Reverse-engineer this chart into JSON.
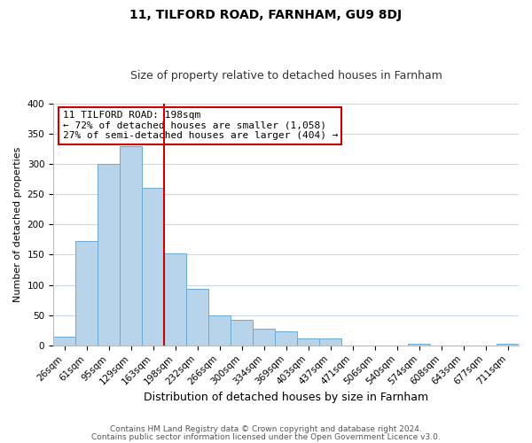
{
  "title": "11, TILFORD ROAD, FARNHAM, GU9 8DJ",
  "subtitle": "Size of property relative to detached houses in Farnham",
  "xlabel": "Distribution of detached houses by size in Farnham",
  "ylabel": "Number of detached properties",
  "bar_labels": [
    "26sqm",
    "61sqm",
    "95sqm",
    "129sqm",
    "163sqm",
    "198sqm",
    "232sqm",
    "266sqm",
    "300sqm",
    "334sqm",
    "369sqm",
    "403sqm",
    "437sqm",
    "471sqm",
    "506sqm",
    "540sqm",
    "574sqm",
    "608sqm",
    "643sqm",
    "677sqm",
    "711sqm"
  ],
  "bar_values": [
    15,
    172,
    300,
    330,
    260,
    152,
    93,
    49,
    42,
    27,
    23,
    12,
    11,
    0,
    0,
    0,
    3,
    0,
    0,
    0,
    2
  ],
  "bar_color": "#b8d4ea",
  "bar_edge_color": "#6aaad4",
  "vline_color": "#cc0000",
  "annotation_line1": "11 TILFORD ROAD: 198sqm",
  "annotation_line2": "← 72% of detached houses are smaller (1,058)",
  "annotation_line3": "27% of semi-detached houses are larger (404) →",
  "annotation_box_color": "#ffffff",
  "annotation_box_edge": "#cc0000",
  "ylim": [
    0,
    400
  ],
  "yticks": [
    0,
    50,
    100,
    150,
    200,
    250,
    300,
    350,
    400
  ],
  "footer_line1": "Contains HM Land Registry data © Crown copyright and database right 2024.",
  "footer_line2": "Contains public sector information licensed under the Open Government Licence v3.0.",
  "bg_color": "#ffffff",
  "grid_color": "#c8d8ea",
  "title_fontsize": 10,
  "subtitle_fontsize": 9,
  "xlabel_fontsize": 9,
  "ylabel_fontsize": 8,
  "tick_fontsize": 7.5,
  "footer_fontsize": 6.5,
  "annotation_fontsize": 8
}
